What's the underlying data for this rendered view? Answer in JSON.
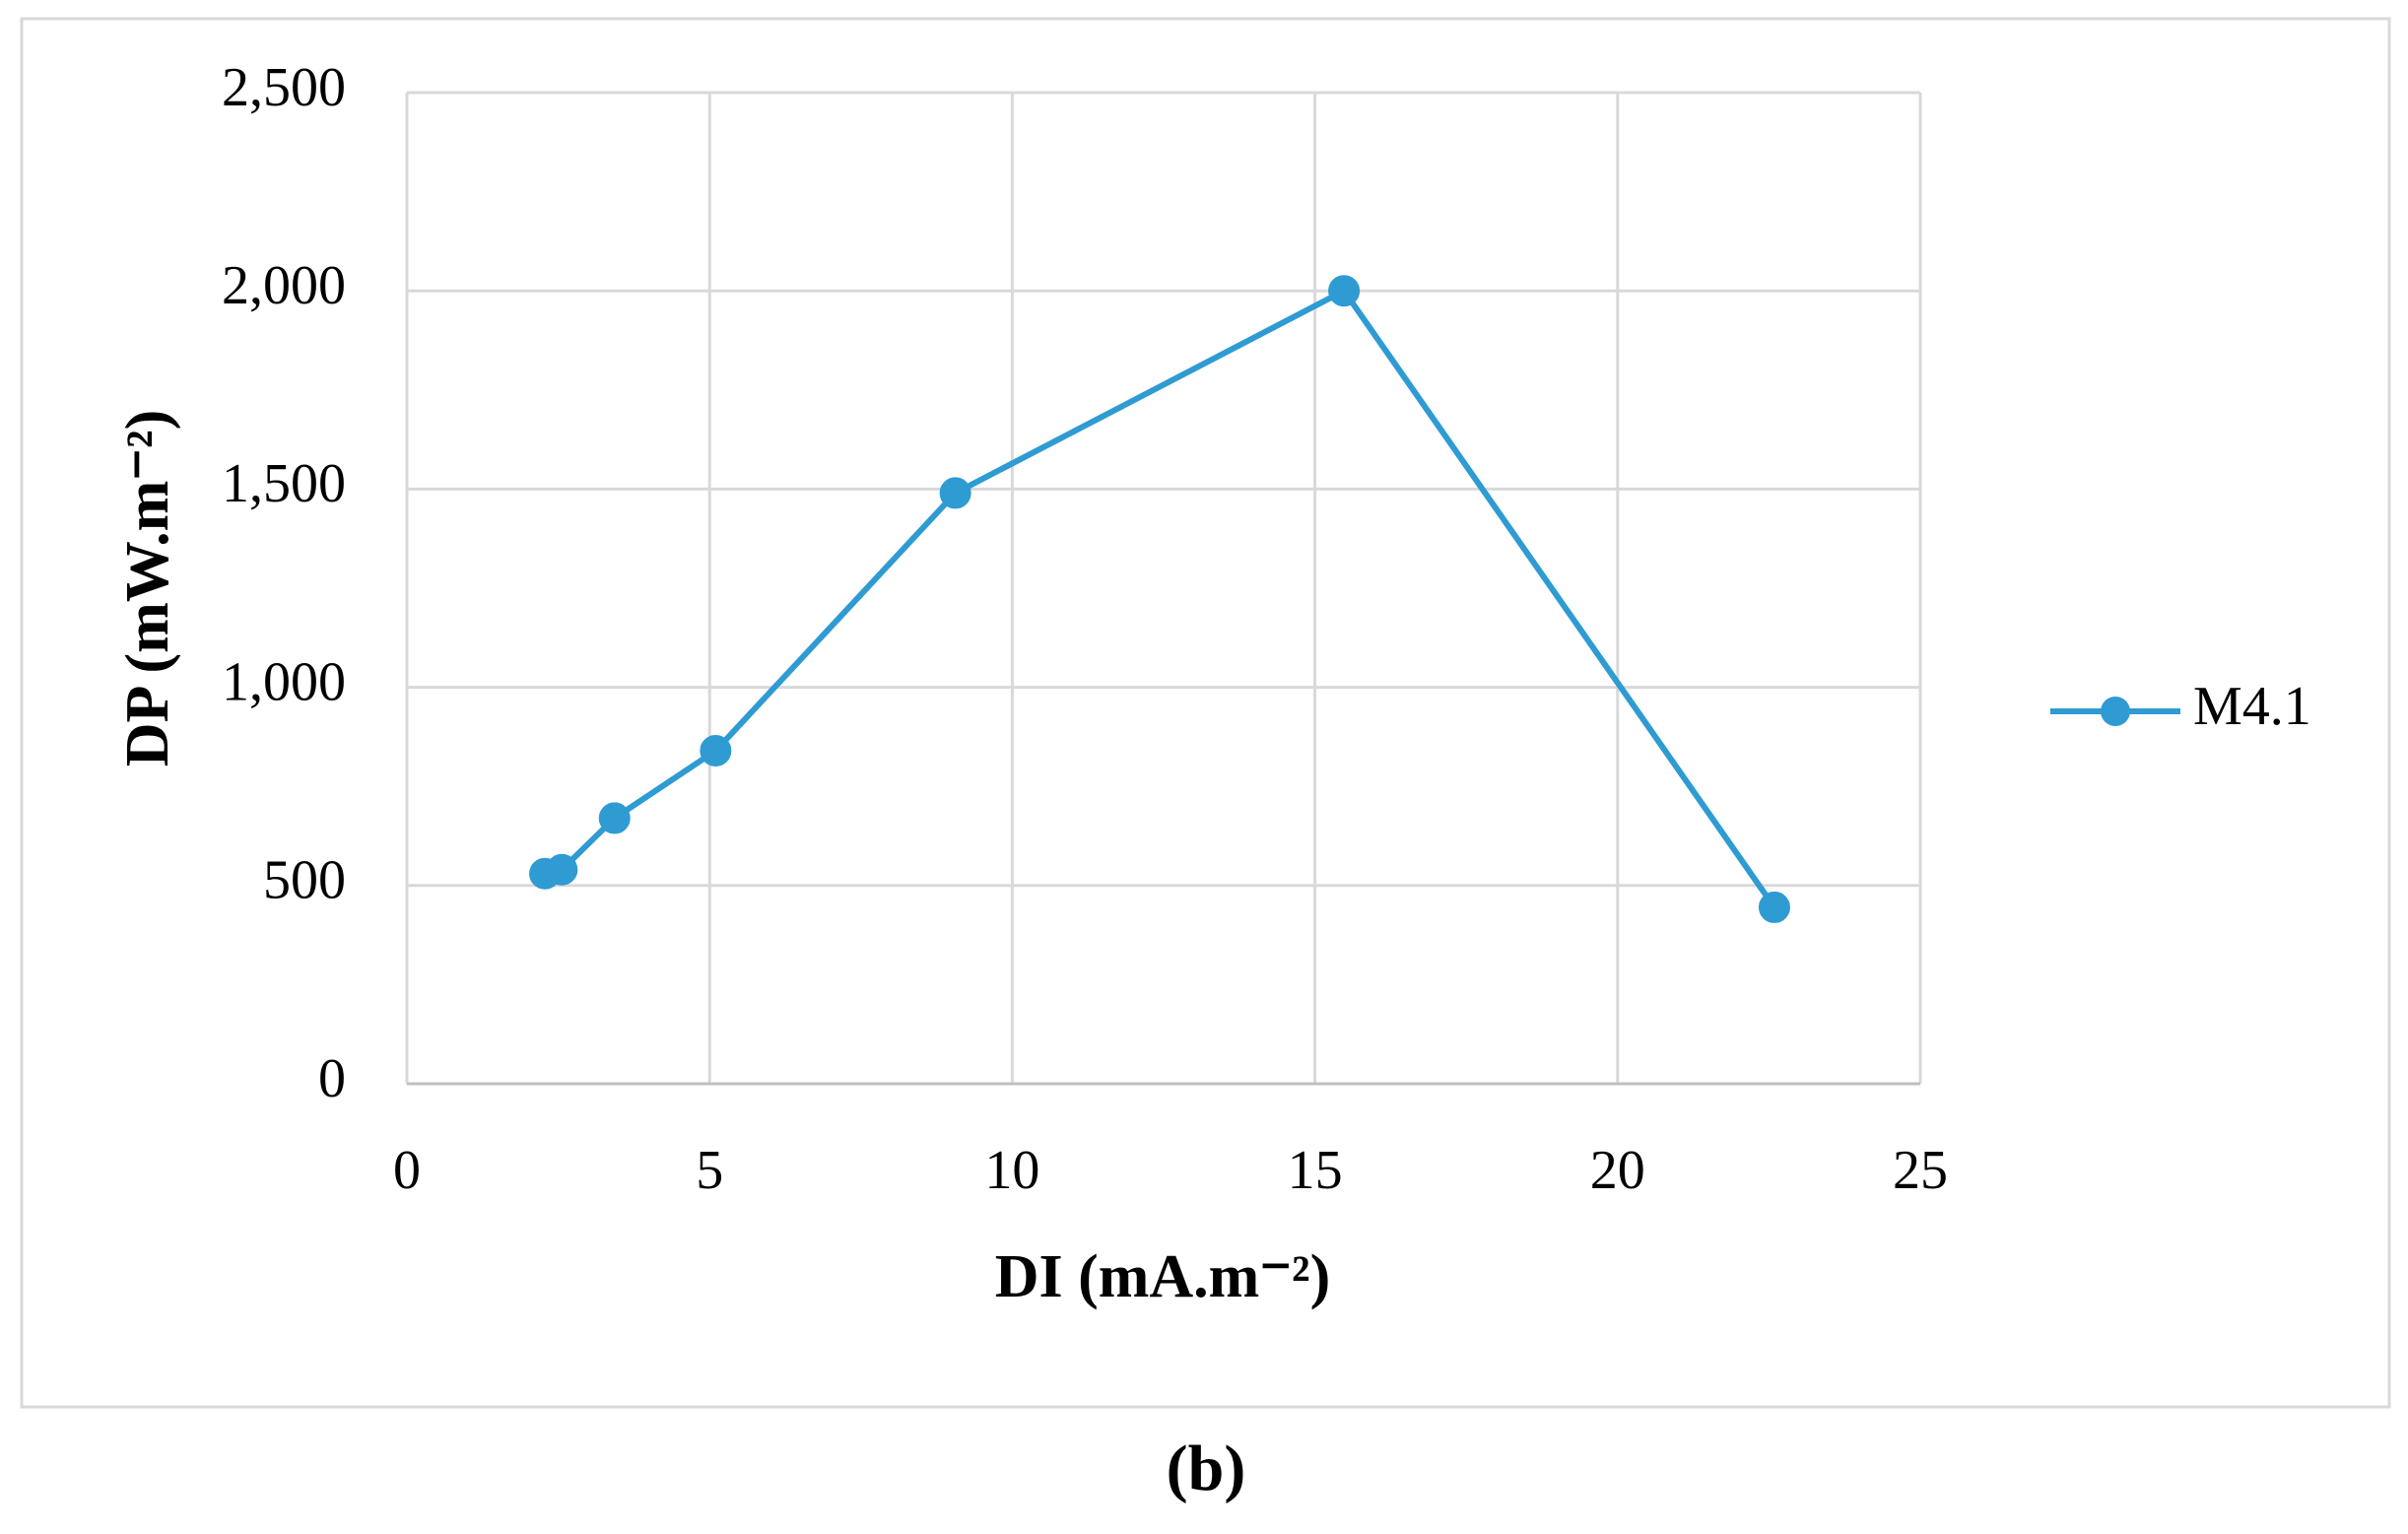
{
  "chart_data": {
    "type": "line",
    "xlabel": "DI (mA.m⁻²)",
    "ylabel": "DP (mW.m⁻²)",
    "caption": "(b)",
    "x": [
      2.28,
      2.56,
      3.43,
      5.1,
      9.06,
      15.48,
      22.59
    ],
    "series": [
      {
        "name": "M4.1",
        "color": "#2f9bd3",
        "values": [
          530,
          540,
          670,
          840,
          1490,
          2000,
          445
        ]
      }
    ],
    "xlim": [
      0,
      25
    ],
    "xticks": [
      0,
      5,
      10,
      15,
      20,
      25
    ],
    "ylim": [
      0,
      2500
    ],
    "yticks": [
      0,
      500,
      {
        "value": 1000,
        "label": "1,000"
      },
      {
        "value": 1500,
        "label": "1,500"
      },
      {
        "value": 2000,
        "label": "2,000"
      },
      {
        "value": 2500,
        "label": "2,500"
      }
    ],
    "grid": true,
    "legend": "right"
  }
}
